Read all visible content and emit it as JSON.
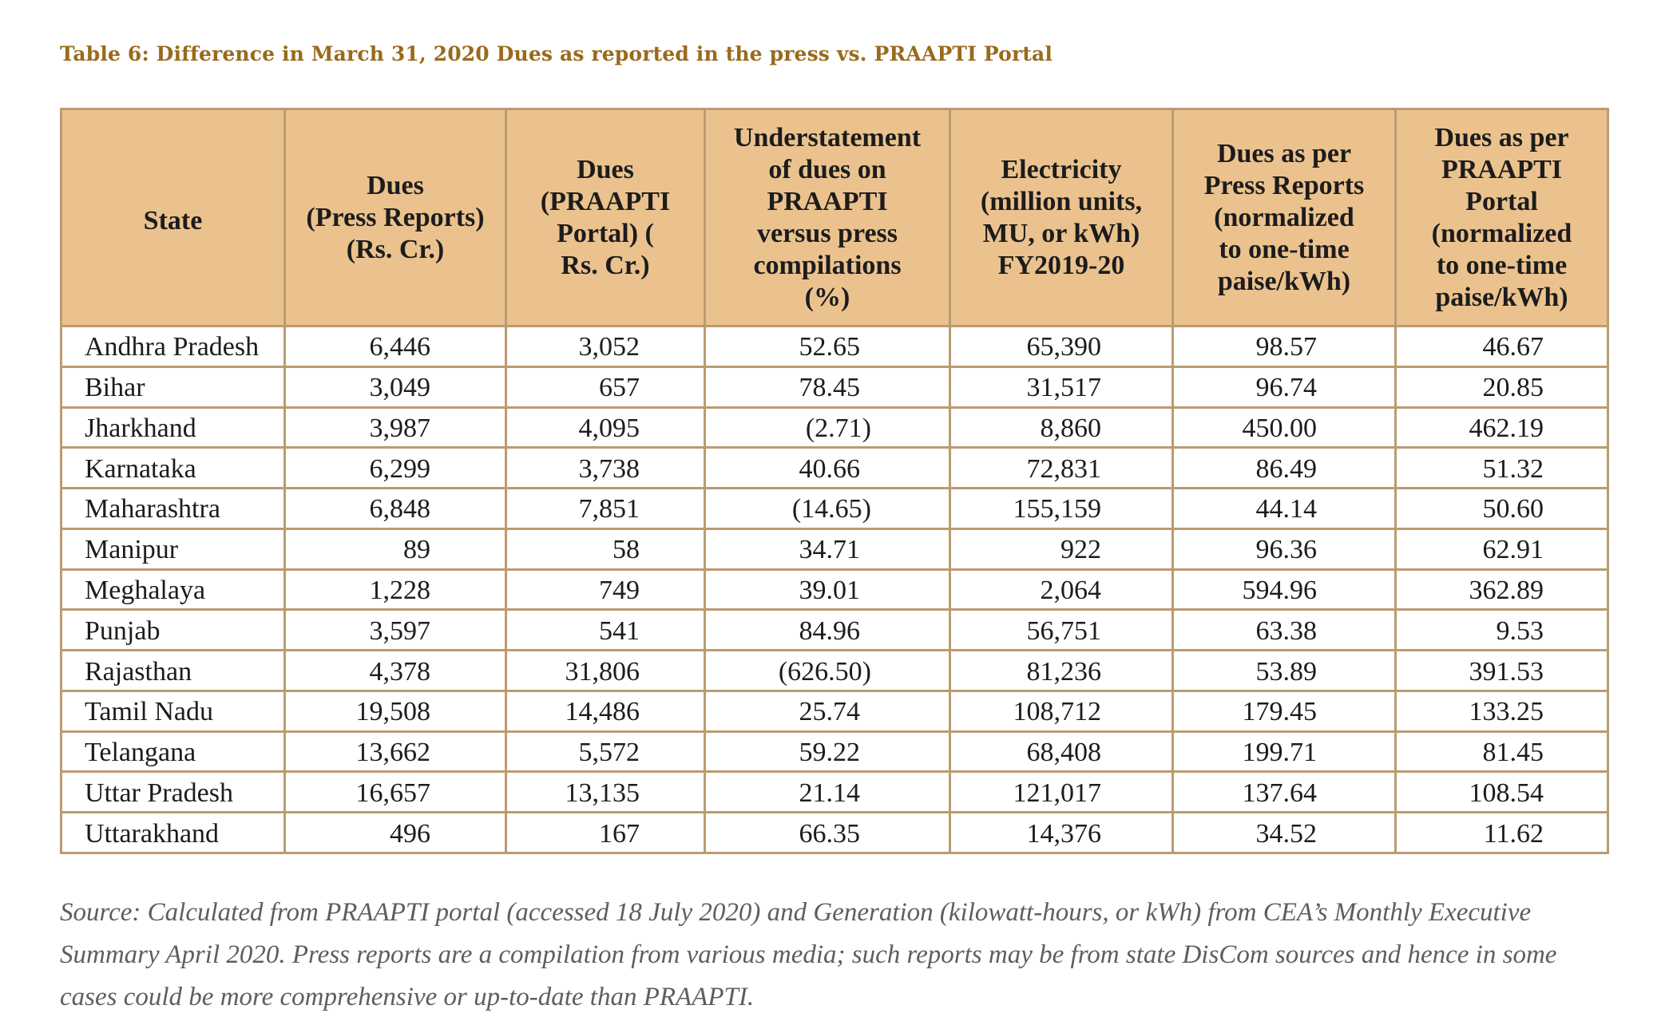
{
  "title": "Table 6: Difference in March 31, 2020 Dues as reported in the press vs. PRAAPTI Portal",
  "table": {
    "columns": [
      {
        "id": "state",
        "label_lines": [
          "State"
        ]
      },
      {
        "id": "dues_press",
        "label_lines": [
          "Dues",
          "(Press Reports)",
          "(Rs. Cr.)"
        ]
      },
      {
        "id": "dues_praapti",
        "label_lines": [
          "Dues",
          "(PRAAPTI",
          "Portal) (",
          "Rs. Cr.)"
        ]
      },
      {
        "id": "understatement_pct",
        "label_lines": [
          "Understatement",
          "of dues on",
          "PRAAPTI",
          "versus press",
          "compilations",
          "(%)"
        ]
      },
      {
        "id": "electricity",
        "label_lines": [
          "Electricity",
          "(million units,",
          "MU, or kWh)",
          "FY2019-20"
        ]
      },
      {
        "id": "dues_press_normalized",
        "label_lines": [
          "Dues as per",
          "Press Reports",
          "(normalized",
          "to one-time",
          "paise/kWh)"
        ]
      },
      {
        "id": "dues_praapti_normalized",
        "label_lines": [
          "Dues as per",
          "PRAAPTI",
          "Portal",
          "(normalized",
          "to one-time",
          "paise/kWh)"
        ]
      }
    ],
    "rows": [
      {
        "state": "Andhra Pradesh",
        "values": [
          "6,446",
          "3,052",
          "52.65",
          "65,390",
          "98.57",
          "46.67"
        ]
      },
      {
        "state": "Bihar",
        "values": [
          "3,049",
          "657",
          "78.45",
          "31,517",
          "96.74",
          "20.85"
        ]
      },
      {
        "state": "Jharkhand",
        "values": [
          "3,987",
          "4,095",
          "(2.71)",
          "8,860",
          "450.00",
          "462.19"
        ]
      },
      {
        "state": "Karnataka",
        "values": [
          "6,299",
          "3,738",
          "40.66",
          "72,831",
          "86.49",
          "51.32"
        ]
      },
      {
        "state": "Maharashtra",
        "values": [
          "6,848",
          "7,851",
          "(14.65)",
          "155,159",
          "44.14",
          "50.60"
        ]
      },
      {
        "state": "Manipur",
        "values": [
          "89",
          "58",
          "34.71",
          "922",
          "96.36",
          "62.91"
        ]
      },
      {
        "state": "Meghalaya",
        "values": [
          "1,228",
          "749",
          "39.01",
          "2,064",
          "594.96",
          "362.89"
        ]
      },
      {
        "state": "Punjab",
        "values": [
          "3,597",
          "541",
          "84.96",
          "56,751",
          "63.38",
          "9.53"
        ]
      },
      {
        "state": "Rajasthan",
        "values": [
          "4,378",
          "31,806",
          "(626.50)",
          "81,236",
          "53.89",
          "391.53"
        ]
      },
      {
        "state": "Tamil Nadu",
        "values": [
          "19,508",
          "14,486",
          "25.74",
          "108,712",
          "179.45",
          "133.25"
        ]
      },
      {
        "state": "Telangana",
        "values": [
          "13,662",
          "5,572",
          "59.22",
          "68,408",
          "199.71",
          "81.45"
        ]
      },
      {
        "state": "Uttar Pradesh",
        "values": [
          "16,657",
          "13,135",
          "21.14",
          "121,017",
          "137.64",
          "108.54"
        ]
      },
      {
        "state": "Uttarakhand",
        "values": [
          "496",
          "167",
          "66.35",
          "14,376",
          "34.52",
          "11.62"
        ]
      }
    ]
  },
  "source_note": {
    "lines": [
      "Source: Calculated from PRAAPTI portal (accessed 18 July 2020) and Generation (kilowatt-hours, or kWh) from CEA’s Monthly Executive",
      "Summary April 2020. Press reports are a compilation from various media; such reports may be from state DisCom sources and hence in some",
      "cases could be more comprehensive or up-to-date than PRAAPTI."
    ]
  },
  "colors": {
    "title": "#9A6A1C",
    "header_fill": "#EBC28E",
    "border": "#BB9B70",
    "body_text": "#1c1c1c",
    "source_text": "#5E5E5E"
  }
}
